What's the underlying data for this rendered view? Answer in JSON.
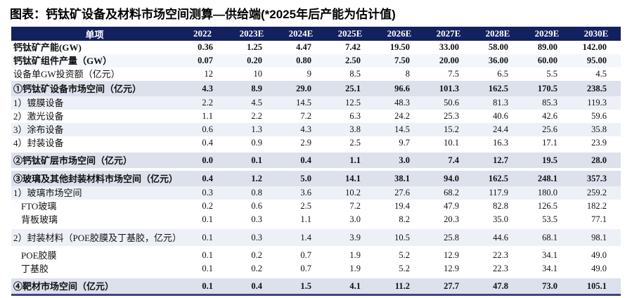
{
  "title": "图表：钙钛矿设备及材料市场空间测算—供给端(*2025年后产能为估计值)",
  "table": {
    "label_header": "单项",
    "year_headers": [
      "2022",
      "2023E",
      "2024E",
      "2025E",
      "2026E",
      "2027E",
      "2028E",
      "2029E",
      "2030E"
    ],
    "rows": [
      {
        "label": "钙钛矿产能(GW)",
        "kind": "metric-bold",
        "shade": "white",
        "gap": false,
        "gap_below": false,
        "values": [
          "0.36",
          "1.25",
          "4.47",
          "7.42",
          "19.50",
          "33.00",
          "58.00",
          "89.00",
          "142.00"
        ]
      },
      {
        "label": "钙钛矿组件产量（GW）",
        "kind": "metric-bold",
        "shade": "xlight",
        "gap": false,
        "gap_below": false,
        "values": [
          "0.07",
          "0.20",
          "0.80",
          "2.50",
          "7.50",
          "20.00",
          "36.00",
          "60.00",
          "95.00"
        ]
      },
      {
        "label": "设备单GW投资额（亿元）",
        "kind": "metric",
        "shade": "white",
        "gap": false,
        "gap_below": false,
        "values": [
          "12",
          "10",
          "9",
          "8.5",
          "8",
          "7.5",
          "6.5",
          "5.5",
          "4.5"
        ]
      },
      {
        "label": "①钙钛矿设备市场空间（亿元）",
        "kind": "section",
        "shade": "section",
        "gap": false,
        "gap_below": false,
        "values": [
          "4.3",
          "8.9",
          "29.0",
          "25.1",
          "96.6",
          "101.3",
          "162.5",
          "170.5",
          "238.5"
        ]
      },
      {
        "label": "1）镀膜设备",
        "kind": "sub",
        "shade": "light",
        "gap": false,
        "gap_below": false,
        "values": [
          "2.2",
          "4.5",
          "14.5",
          "12.5",
          "48.3",
          "50.6",
          "81.3",
          "85.3",
          "119.3"
        ]
      },
      {
        "label": "2）激光设备",
        "kind": "sub",
        "shade": "white",
        "gap": false,
        "gap_below": false,
        "values": [
          "1.1",
          "2.2",
          "7.2",
          "6.3",
          "24.2",
          "25.3",
          "40.6",
          "42.6",
          "59.6"
        ]
      },
      {
        "label": "3）涂布设备",
        "kind": "sub",
        "shade": "light",
        "gap": false,
        "gap_below": false,
        "values": [
          "0.6",
          "1.3",
          "4.3",
          "3.8",
          "14.5",
          "15.2",
          "24.4",
          "25.6",
          "35.8"
        ]
      },
      {
        "label": "4）封装设备",
        "kind": "sub",
        "shade": "white",
        "gap": false,
        "gap_below": false,
        "values": [
          "0.4",
          "0.9",
          "2.9",
          "2.5",
          "9.7",
          "10.1",
          "16.3",
          "17.1",
          "23.9"
        ]
      },
      {
        "label": "②钙钛矿层市场空间（亿元）",
        "kind": "section",
        "shade": "section",
        "gap": true,
        "gap_below": false,
        "values": [
          "0.0",
          "0.1",
          "0.4",
          "1.1",
          "3.0",
          "7.4",
          "12.7",
          "19.5",
          "28.0"
        ]
      },
      {
        "label": "③玻璃及其他封装材料市场空间（亿元）",
        "kind": "section",
        "shade": "section",
        "gap": true,
        "gap_below": false,
        "values": [
          "0.4",
          "1.2",
          "5.0",
          "14.1",
          "38.1",
          "94.0",
          "162.5",
          "248.1",
          "357.3"
        ]
      },
      {
        "label": "1）玻璃市场空间",
        "kind": "sub",
        "shade": "light",
        "gap": false,
        "gap_below": false,
        "values": [
          "0.3",
          "0.8",
          "3.6",
          "10.2",
          "27.6",
          "68.2",
          "117.9",
          "180.0",
          "259.2"
        ]
      },
      {
        "label": "FTO玻璃",
        "kind": "subsub",
        "shade": "white",
        "gap": false,
        "gap_below": false,
        "values": [
          "0.2",
          "0.6",
          "2.5",
          "7.2",
          "19.4",
          "47.9",
          "82.8",
          "126.5",
          "182.2"
        ]
      },
      {
        "label": "背板玻璃",
        "kind": "subsub",
        "shade": "white",
        "gap": false,
        "gap_below": false,
        "values": [
          "0.1",
          "0.3",
          "1.1",
          "3.0",
          "8.2",
          "20.3",
          "35.0",
          "53.5",
          "77.1"
        ]
      },
      {
        "label": "2）封装材料（POE胶膜及丁基胶，亿元）",
        "kind": "tall",
        "shade": "light",
        "gap": true,
        "gap_below": true,
        "values": [
          "0.1",
          "0.3",
          "1.4",
          "3.9",
          "10.5",
          "25.8",
          "44.6",
          "68.1",
          "98.1"
        ]
      },
      {
        "label": "POE胶膜",
        "kind": "subsub",
        "shade": "white",
        "gap": false,
        "gap_below": false,
        "values": [
          "0.1",
          "0.2",
          "0.7",
          "1.9",
          "5.2",
          "12.9",
          "22.3",
          "34.1",
          "49.0"
        ]
      },
      {
        "label": "丁基胶",
        "kind": "subsub",
        "shade": "white",
        "gap": false,
        "gap_below": false,
        "values": [
          "0.1",
          "0.2",
          "0.7",
          "1.9",
          "5.2",
          "12.9",
          "22.3",
          "34.1",
          "49.0"
        ]
      },
      {
        "label": "④靶材市场空间（亿元）",
        "kind": "section",
        "shade": "section",
        "gap": true,
        "gap_below": false,
        "values": [
          "0.1",
          "0.4",
          "1.5",
          "4.1",
          "11.2",
          "27.7",
          "47.8",
          "73.0",
          "105.1"
        ]
      }
    ]
  },
  "colors": {
    "header_bg": "#14215f",
    "section_row_bg": "#dce1ec",
    "stripe_bg": "#edf0f6",
    "bottom_rule": "#3f4587",
    "title_text": "#000000",
    "header_text": "#ffffff"
  }
}
